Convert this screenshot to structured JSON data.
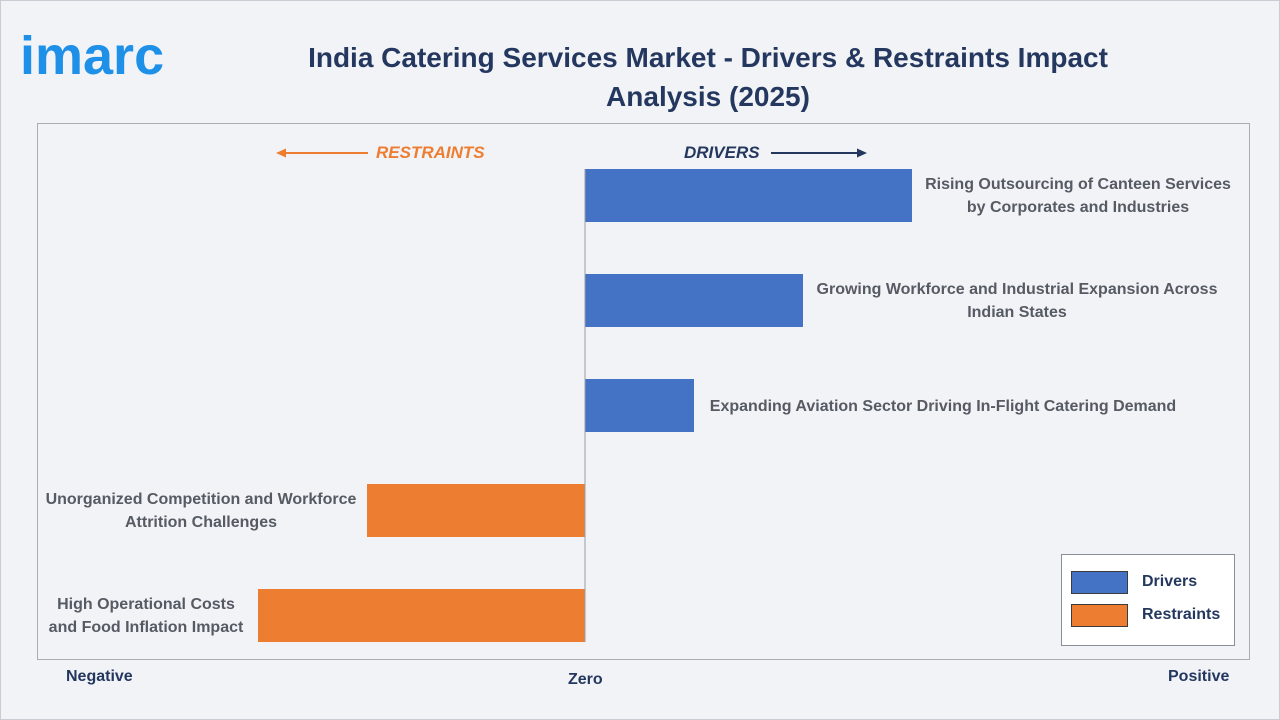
{
  "logo_text": "imarc",
  "title": "India Catering Services Market - Drivers & Restraints Impact Analysis (2025)",
  "direction_labels": {
    "restraints": "RESTRAINTS",
    "drivers": "DRIVERS"
  },
  "axis": {
    "negative": "Negative",
    "zero": "Zero",
    "positive": "Positive"
  },
  "colors": {
    "drivers": "#4472c4",
    "restraints": "#ed7d31",
    "title": "#24385f",
    "logo": "#1e90e8"
  },
  "chart_data": {
    "type": "bar",
    "orientation": "horizontal",
    "xlabel": "",
    "ylabel": "",
    "xlim": [
      -3,
      6
    ],
    "grid": false,
    "legend_position": "bottom-right",
    "categories": [
      "Rising Outsourcing of Canteen Services by Corporates and Industries",
      "Growing Workforce and Industrial Expansion Across Indian States",
      "Expanding Aviation Sector Driving In-Flight Catering Demand",
      "Unorganized Competition and Workforce Attrition Challenges",
      "High Operational Costs and Food Inflation Impact"
    ],
    "series": [
      {
        "name": "Drivers",
        "values": [
          3.0,
          2.0,
          1.0,
          null,
          null
        ]
      },
      {
        "name": "Restraints",
        "values": [
          null,
          null,
          null,
          -2.0,
          -3.0
        ]
      }
    ]
  }
}
